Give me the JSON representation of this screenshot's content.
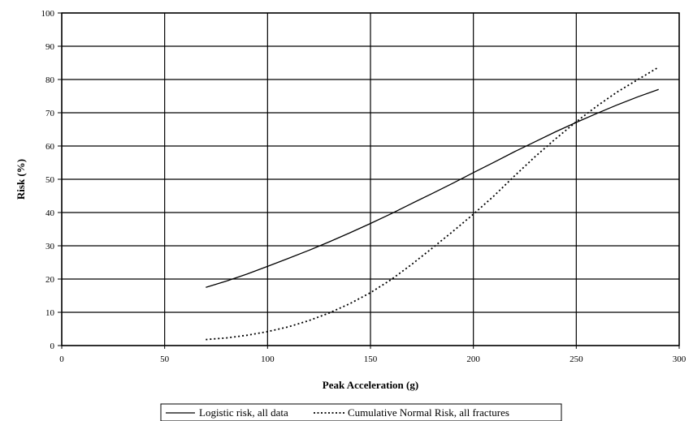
{
  "chart_data": {
    "type": "line",
    "title": "",
    "xlabel": "Peak Acceleration (g)",
    "ylabel": "Risk (%)",
    "xlim": [
      0,
      300
    ],
    "ylim": [
      0,
      100
    ],
    "x_ticks": [
      0,
      50,
      100,
      150,
      200,
      250,
      300
    ],
    "y_ticks": [
      0,
      10,
      20,
      30,
      40,
      50,
      60,
      70,
      80,
      90,
      100
    ],
    "grid": true,
    "legend_position": "bottom",
    "series": [
      {
        "name": "Logistic risk, all data",
        "style": "solid",
        "x": [
          70,
          80,
          90,
          100,
          110,
          120,
          130,
          140,
          150,
          160,
          170,
          180,
          190,
          200,
          210,
          220,
          230,
          240,
          250,
          260,
          270,
          280,
          290
        ],
        "y": [
          17.5,
          19.4,
          21.5,
          23.8,
          26.2,
          28.6,
          31.2,
          33.9,
          36.7,
          39.6,
          42.7,
          45.7,
          48.8,
          52.0,
          55.1,
          58.3,
          61.3,
          64.3,
          67.1,
          69.8,
          72.4,
          74.8,
          77.0
        ]
      },
      {
        "name": "Cumulative Normal Risk, all fractures",
        "style": "dotted",
        "x": [
          70,
          80,
          90,
          100,
          110,
          120,
          130,
          140,
          150,
          160,
          170,
          180,
          190,
          200,
          210,
          220,
          230,
          240,
          250,
          260,
          270,
          280,
          290
        ],
        "y": [
          1.8,
          2.3,
          3.1,
          4.2,
          5.6,
          7.5,
          9.8,
          12.6,
          15.9,
          19.8,
          24.4,
          29.3,
          34.3,
          39.5,
          45.0,
          51.0,
          56.8,
          62.2,
          67.3,
          72.0,
          76.3,
          80.0,
          83.7
        ]
      }
    ]
  }
}
